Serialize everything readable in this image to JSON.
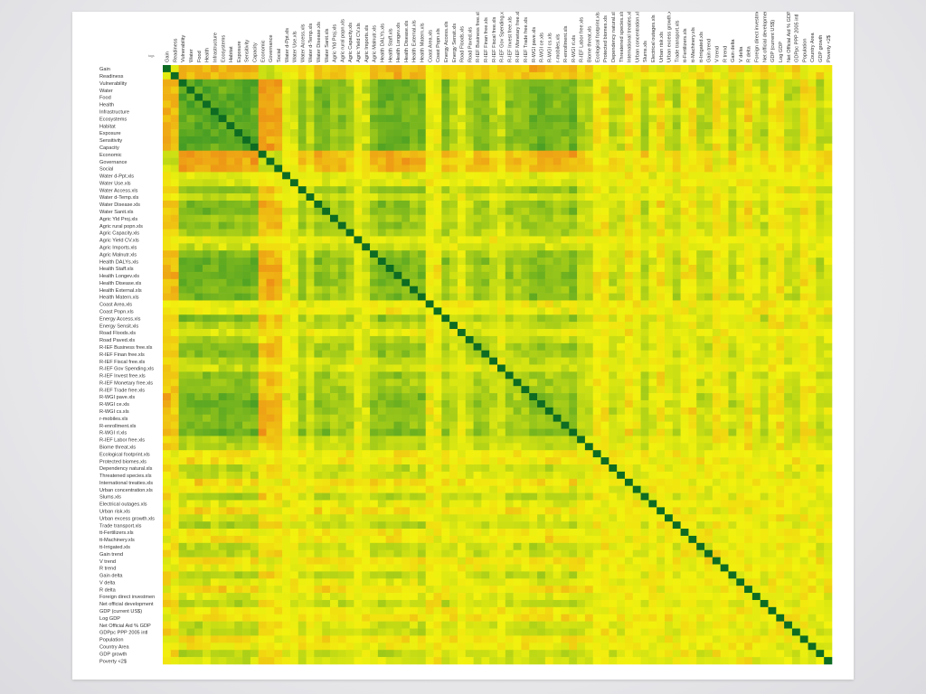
{
  "colors": {
    "low": "#e8291f",
    "mid": "#f2f20e",
    "high": "#1f8a2a",
    "diagonal": "#0d6b22"
  },
  "chart_data": {
    "type": "heatmap",
    "title": "",
    "corner_label": "tags",
    "vmin": -1,
    "vmax": 1,
    "cmap": "red-yellow-green",
    "labels": [
      "Gain",
      "Readiness",
      "Vulnerability",
      "Water",
      "Food",
      "Health",
      "Infrastructure",
      "Ecosystems",
      "Habitat",
      "Exposure",
      "Sensitivity",
      "Capacity",
      "Economic",
      "Governance",
      "Social",
      "Water d-Ppt.xls",
      "Water Use.xls",
      "Water Access.xls",
      "Water d-Temp.xls",
      "Water Disease.xls",
      "Water Sanit.xls",
      "Agric Yld Proj.xls",
      "Agric rural popn.xls",
      "Agric Capacity.xls",
      "Agric Yield CV.xls",
      "Agric Imports.xls",
      "Agric Malnutr.xls",
      "Health DALYs.xls",
      "Health Staff.xls",
      "Health Longev.xls",
      "Health Disease.xls",
      "Health External.xls",
      "Health Matern.xls",
      "Coast Area.xls",
      "Coast Popn.xls",
      "Energy Access.xls",
      "Energy Sensit.xls",
      "Road Floods.xls",
      "Road Paved.xls",
      "R-IEF Business free.xls",
      "R-IEF Finan free.xls",
      "R-IEF Fiscal free.xls",
      "R-IEF Gov Spending.xls",
      "R-IEF Invest free.xls",
      "R-IEF Monetary free.xls",
      "R-IEF Trade free.xls",
      "R-WGI pave.xls",
      "R-WGI ce.xls",
      "R-WGI cs.xls",
      "r-mobiles.xls",
      "R-enrollment.xls",
      "R-WGI rl.xls",
      "R-IEF Labor free.xls",
      "Biome threat.xls",
      "Ecological footprint.xls",
      "Protected biomes.xls",
      "Dependency natural.xls",
      "Threatened species.xls",
      "International treaties.xls",
      "Urban concentration.xls",
      "Slums.xls",
      "Electrical outages.xls",
      "Urban risk.xls",
      "Urban excess growth.xls",
      "Trade transport.xls",
      "tt-Fertilizers.xls",
      "tt-Machinery.xls",
      "tt-Irrigated.xls",
      "Gain trend",
      "V trend",
      "R trend",
      "Gain delta",
      "V delta",
      "R delta",
      "Foreign direct investmen",
      "Net official development",
      "GDP (current US$)",
      "Log GDP",
      "Net Official Aid % GDP",
      "GDPpc PPP 2005 intl",
      "Population",
      "Country Area",
      "GDP growth",
      "Poverty <2$"
    ],
    "blocks": [
      {
        "name": "Gain",
        "index": 0,
        "corr": -0.35
      },
      {
        "name": "Readiness",
        "index": 1,
        "corr": -0.3
      },
      {
        "name": "Vulnerability",
        "index": 2,
        "corr": 0.75
      },
      {
        "name": "Water",
        "index": 3,
        "corr": 0.75
      },
      {
        "name": "Food",
        "index": 4,
        "corr": 0.75
      },
      {
        "name": "Health",
        "index": 5,
        "corr": 0.75
      },
      {
        "name": "Infrastructure",
        "index": 6,
        "corr": 0.75
      },
      {
        "name": "Ecosystems",
        "index": 7,
        "corr": 0.75
      },
      {
        "name": "Habitat",
        "index": 8,
        "corr": 0.75
      },
      {
        "name": "Exposure",
        "index": 9,
        "corr": 0.75
      },
      {
        "name": "Sensitivity",
        "index": 10,
        "corr": 0.75
      },
      {
        "name": "Capacity",
        "index": 11,
        "corr": 0.75
      },
      {
        "name": "Economic",
        "index": 12,
        "corr": -0.4
      },
      {
        "name": "Governance",
        "index": 13,
        "corr": -0.4
      },
      {
        "name": "Social",
        "index": 14,
        "corr": -0.4
      },
      {
        "name": "Water d-Ppt.xls",
        "index": 15,
        "corr": 0.1
      },
      {
        "name": "Water Use.xls",
        "index": 16,
        "corr": 0.1
      },
      {
        "name": "Water Access.xls",
        "index": 17,
        "corr": 0.55
      },
      {
        "name": "Water d-Temp.xls",
        "index": 18,
        "corr": 0.2
      },
      {
        "name": "Water Disease.xls",
        "index": 19,
        "corr": 0.6
      },
      {
        "name": "Water Sanit.xls",
        "index": 20,
        "corr": 0.6
      },
      {
        "name": "Agric Yld Proj.xls",
        "index": 21,
        "corr": 0.45
      },
      {
        "name": "Agric rural popn.xls",
        "index": 22,
        "corr": 0.55
      },
      {
        "name": "Agric Capacity.xls",
        "index": 23,
        "corr": 0.45
      },
      {
        "name": "Agric Yield CV.xls",
        "index": 24,
        "corr": 0.1
      },
      {
        "name": "Agric Imports.xls",
        "index": 25,
        "corr": 0.2
      },
      {
        "name": "Agric Malnutr.xls",
        "index": 26,
        "corr": 0.55
      },
      {
        "name": "Health DALYs.xls",
        "index": 27,
        "corr": 0.7
      },
      {
        "name": "Health Staff.xls",
        "index": 28,
        "corr": 0.65
      },
      {
        "name": "Health Longev.xls",
        "index": 29,
        "corr": 0.7
      },
      {
        "name": "Health Disease.xls",
        "index": 30,
        "corr": 0.65
      },
      {
        "name": "Health External.xls",
        "index": 31,
        "corr": 0.55
      },
      {
        "name": "Health Matern.xls",
        "index": 32,
        "corr": 0.65
      },
      {
        "name": "Coast Area.xls",
        "index": 33,
        "corr": 0.0
      },
      {
        "name": "Coast Popn.xls",
        "index": 34,
        "corr": 0.0
      },
      {
        "name": "Energy Access.xls",
        "index": 35,
        "corr": 0.55
      },
      {
        "name": "Energy Sensit.xls",
        "index": 36,
        "corr": 0.3
      },
      {
        "name": "Road Floods.xls",
        "index": 37,
        "corr": 0.1
      },
      {
        "name": "Road Paved.xls",
        "index": 38,
        "corr": 0.35
      },
      {
        "name": "R-IEF Business free.xls",
        "index": 39,
        "corr": 0.55
      },
      {
        "name": "R-IEF Finan free.xls",
        "index": 40,
        "corr": 0.5
      },
      {
        "name": "R-IEF Fiscal free.xls",
        "index": 41,
        "corr": 0.3
      },
      {
        "name": "R-IEF Gov Spending.xls",
        "index": 42,
        "corr": 0.2
      },
      {
        "name": "R-IEF Invest free.xls",
        "index": 43,
        "corr": 0.5
      },
      {
        "name": "R-IEF Monetary free.xls",
        "index": 44,
        "corr": 0.45
      },
      {
        "name": "R-IEF Trade free.xls",
        "index": 45,
        "corr": 0.5
      },
      {
        "name": "R-WGI pave.xls",
        "index": 46,
        "corr": 0.65
      },
      {
        "name": "R-WGI ce.xls",
        "index": 47,
        "corr": 0.7
      },
      {
        "name": "R-WGI cs.xls",
        "index": 48,
        "corr": 0.6
      },
      {
        "name": "r-mobiles.xls",
        "index": 49,
        "corr": 0.55
      },
      {
        "name": "R-enrollment.xls",
        "index": 50,
        "corr": 0.55
      },
      {
        "name": "R-WGI rl.xls",
        "index": 51,
        "corr": 0.7
      },
      {
        "name": "R-IEF Labor free.xls",
        "index": 52,
        "corr": 0.35
      }
    ]
  }
}
